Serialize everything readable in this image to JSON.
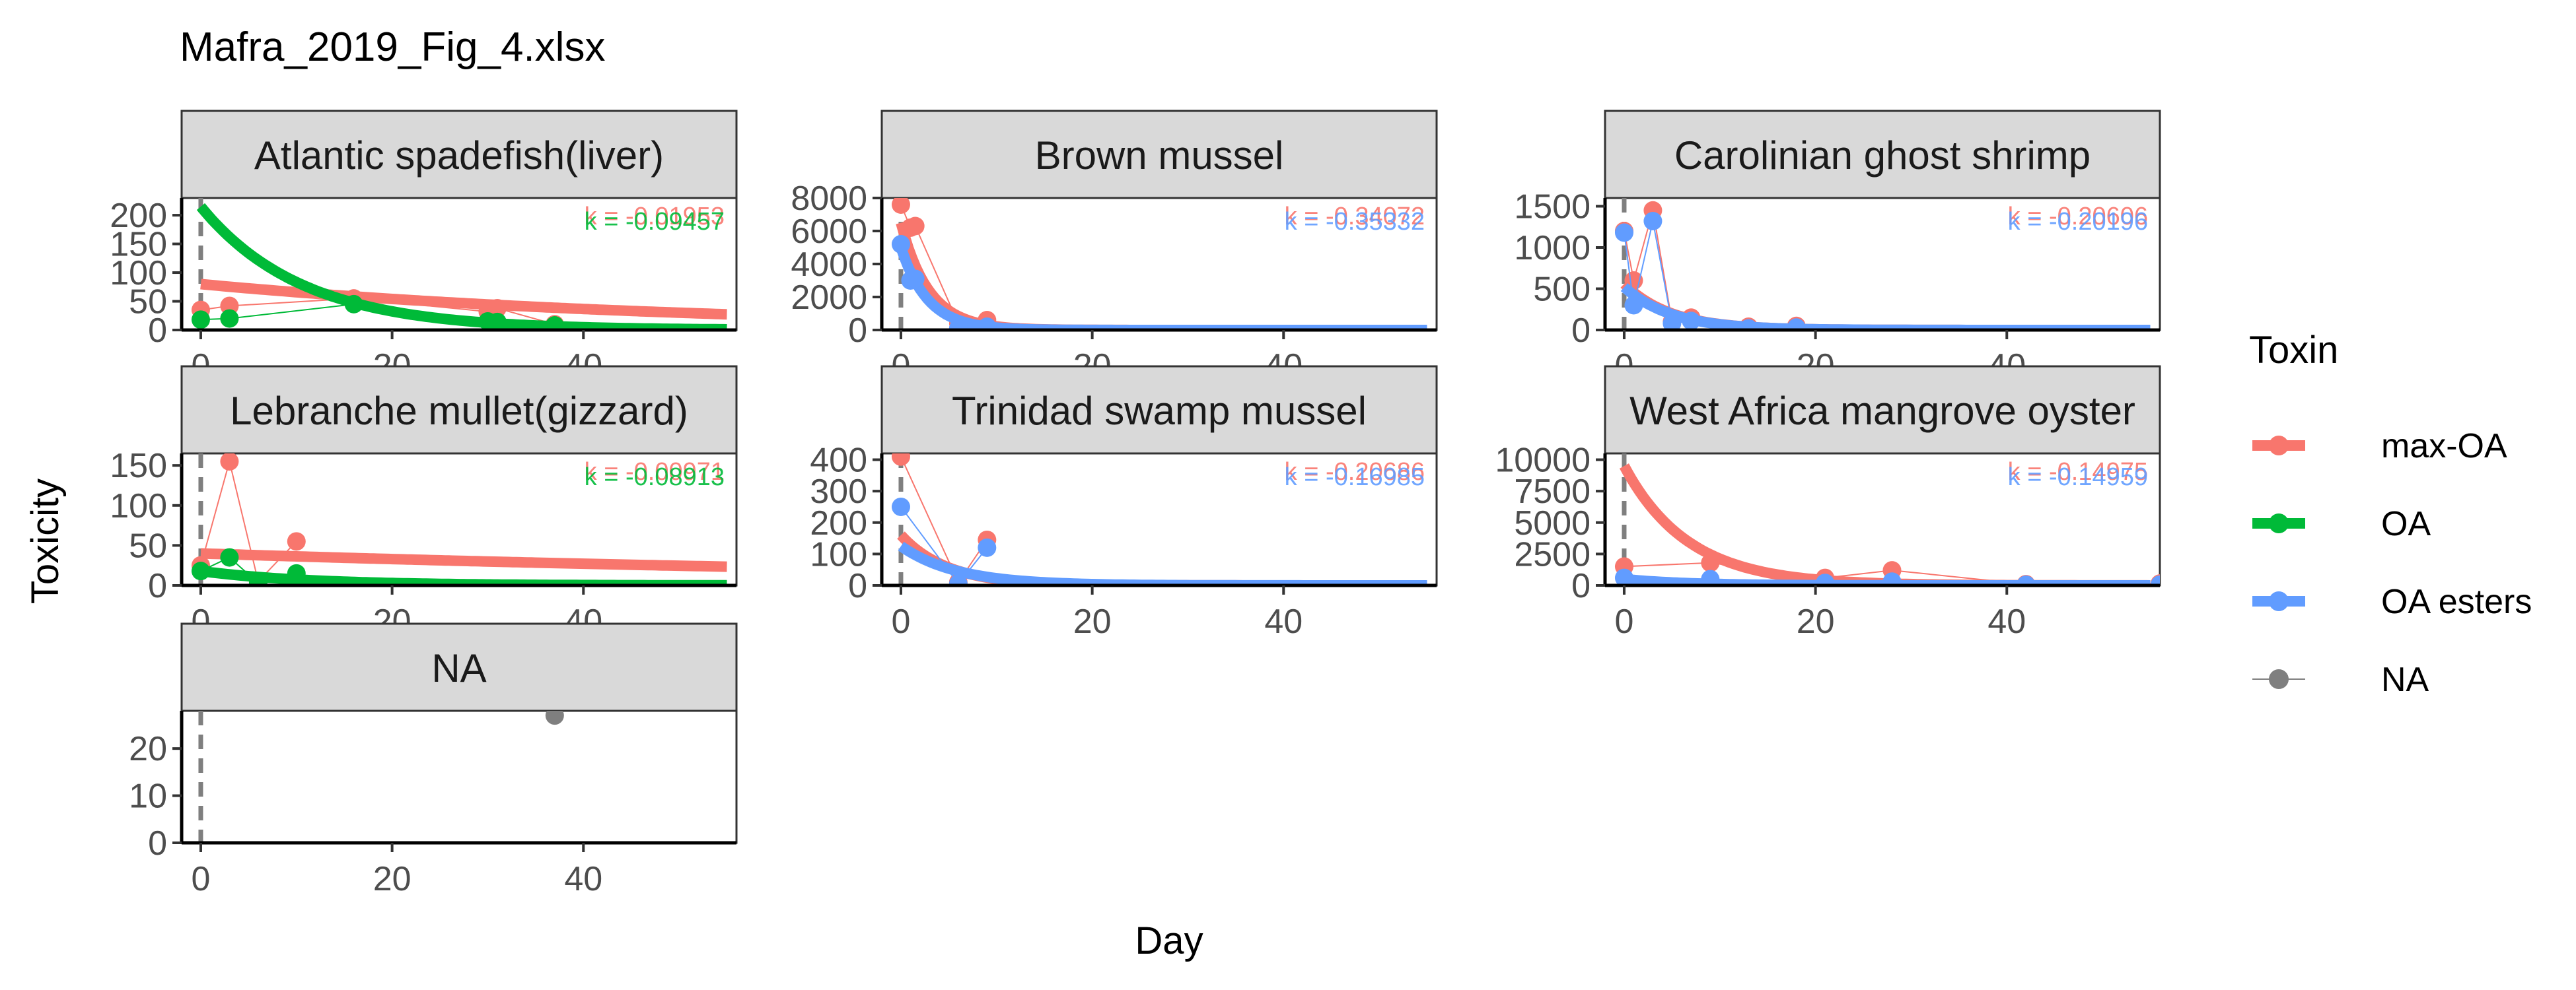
{
  "chart_data": {
    "type": "line",
    "title": "Mafra_2019_Fig_4.xlsx",
    "xlabel": "Day",
    "ylabel": "Toxicity",
    "legend": {
      "title": "Toxin",
      "placement": "right",
      "entries": [
        {
          "name": "max-OA",
          "color": "#F8766D"
        },
        {
          "name": "OA",
          "color": "#00BA38"
        },
        {
          "name": "OA esters",
          "color": "#619CFF"
        },
        {
          "name": "NA",
          "color": "#7F7F7F"
        }
      ]
    },
    "x_range": [
      -2,
      56
    ],
    "x_ticks": [
      0,
      20,
      40
    ],
    "facets": [
      {
        "title": "Atlantic spadefish(liver)",
        "y_range": [
          0,
          230
        ],
        "y_ticks": [
          0,
          50,
          100,
          150,
          200
        ],
        "y_tick_labels": [
          "0",
          "50",
          "100",
          "150",
          "200"
        ],
        "series": [
          {
            "toxin": "max-OA",
            "points": [
              [
                0,
                35
              ],
              [
                3,
                42
              ],
              [
                16,
                55
              ],
              [
                30,
                32
              ],
              [
                31,
                38
              ],
              [
                37,
                10
              ]
            ],
            "fit": {
              "a": 80,
              "k": 0.01953
            }
          },
          {
            "toxin": "OA",
            "points": [
              [
                0,
                18
              ],
              [
                3,
                20
              ],
              [
                16,
                45
              ],
              [
                30,
                15
              ],
              [
                31,
                14
              ],
              [
                37,
                8
              ]
            ],
            "fit": {
              "a": 215,
              "k": 0.09457
            }
          }
        ],
        "k_labels": [
          {
            "text": "k = -0.01953",
            "color": "#F8766D"
          },
          {
            "text": "k = -0.09457",
            "color": "#00BA38"
          }
        ]
      },
      {
        "title": "Brown mussel",
        "y_range": [
          0,
          8000
        ],
        "y_ticks": [
          0,
          2000,
          4000,
          6000,
          8000
        ],
        "y_tick_labels": [
          "0",
          "2000",
          "4000",
          "6000",
          "8000"
        ],
        "series": [
          {
            "toxin": "max-OA",
            "points": [
              [
                0,
                7600
              ],
              [
                1,
                6200
              ],
              [
                1.5,
                6300
              ],
              [
                6,
                400
              ],
              [
                9,
                600
              ]
            ],
            "fit": {
              "a": 6500,
              "k": 0.34072
            }
          },
          {
            "toxin": "OA esters",
            "points": [
              [
                0,
                5200
              ],
              [
                1,
                3000
              ],
              [
                1.5,
                3100
              ],
              [
                6,
                100
              ],
              [
                9,
                200
              ]
            ],
            "fit": {
              "a": 5000,
              "k": 0.35332
            }
          }
        ],
        "k_labels": [
          {
            "text": "k = -0.34072",
            "color": "#F8766D"
          },
          {
            "text": "k = -0.35332",
            "color": "#619CFF"
          }
        ]
      },
      {
        "title": "Carolinian ghost shrimp",
        "y_range": [
          0,
          1600
        ],
        "y_ticks": [
          0,
          500,
          1000,
          1500
        ],
        "y_tick_labels": [
          "0",
          "500",
          "1000",
          "1500"
        ],
        "series": [
          {
            "toxin": "max-OA",
            "points": [
              [
                0,
                1200
              ],
              [
                1,
                600
              ],
              [
                3,
                1450
              ],
              [
                5,
                100
              ],
              [
                7,
                150
              ],
              [
                13,
                40
              ],
              [
                18,
                50
              ]
            ],
            "fit": {
              "a": 560,
              "k": 0.20606
            }
          },
          {
            "toxin": "OA esters",
            "points": [
              [
                0,
                1180
              ],
              [
                1,
                300
              ],
              [
                3,
                1320
              ],
              [
                5,
                80
              ],
              [
                7,
                110
              ],
              [
                13,
                20
              ],
              [
                18,
                30
              ]
            ],
            "fit": {
              "a": 520,
              "k": 0.20196
            }
          }
        ],
        "k_labels": [
          {
            "text": "k = -0.20606",
            "color": "#F8766D"
          },
          {
            "text": "k = -0.20196",
            "color": "#619CFF"
          }
        ]
      },
      {
        "title": "Lebranche mullet(gizzard)",
        "y_range": [
          0,
          165
        ],
        "y_ticks": [
          0,
          50,
          100,
          150
        ],
        "y_tick_labels": [
          "0",
          "50",
          "100",
          "150"
        ],
        "series": [
          {
            "toxin": "max-OA",
            "points": [
              [
                0,
                25
              ],
              [
                3,
                155
              ],
              [
                6,
                5
              ],
              [
                10,
                55
              ]
            ],
            "fit": {
              "a": 40,
              "k": 0.00971
            }
          },
          {
            "toxin": "OA",
            "points": [
              [
                0,
                18
              ],
              [
                3,
                35
              ],
              [
                6,
                3
              ],
              [
                10,
                15
              ]
            ],
            "fit": {
              "a": 18,
              "k": 0.08913
            }
          }
        ],
        "k_labels": [
          {
            "text": "k = -0.00971",
            "color": "#F8766D"
          },
          {
            "text": "k = -0.08913",
            "color": "#00BA38"
          }
        ]
      },
      {
        "title": "Trinidad swamp mussel",
        "y_range": [
          0,
          420
        ],
        "y_ticks": [
          0,
          100,
          200,
          300,
          400
        ],
        "y_tick_labels": [
          "0",
          "100",
          "200",
          "300",
          "400"
        ],
        "series": [
          {
            "toxin": "max-OA",
            "points": [
              [
                0,
                410
              ],
              [
                6,
                10
              ],
              [
                9,
                145
              ]
            ],
            "fit": {
              "a": 160,
              "k": 0.20686
            }
          },
          {
            "toxin": "OA esters",
            "points": [
              [
                0,
                250
              ],
              [
                6,
                5
              ],
              [
                9,
                120
              ]
            ],
            "fit": {
              "a": 125,
              "k": 0.16985
            }
          }
        ],
        "k_labels": [
          {
            "text": "k = -0.20686",
            "color": "#F8766D"
          },
          {
            "text": "k = -0.16985",
            "color": "#619CFF"
          }
        ]
      },
      {
        "title": "West Africa mangrove oyster",
        "y_range": [
          0,
          10500
        ],
        "y_ticks": [
          0,
          2500,
          5000,
          7500,
          10000
        ],
        "y_tick_labels": [
          "0",
          "2500",
          "5000",
          "7500",
          "10000"
        ],
        "series": [
          {
            "toxin": "max-OA",
            "points": [
              [
                0,
                1500
              ],
              [
                9,
                1800
              ],
              [
                21,
                600
              ],
              [
                28,
                1200
              ],
              [
                42,
                100
              ],
              [
                56,
                150
              ]
            ],
            "fit": {
              "a": 9500,
              "k": 0.14975
            }
          },
          {
            "toxin": "OA esters",
            "points": [
              [
                0,
                600
              ],
              [
                9,
                500
              ],
              [
                21,
                200
              ],
              [
                28,
                300
              ],
              [
                42,
                50
              ],
              [
                56,
                60
              ]
            ],
            "fit": {
              "a": 500,
              "k": 0.14959
            }
          }
        ],
        "k_labels": [
          {
            "text": "k = -0.14975",
            "color": "#F8766D"
          },
          {
            "text": "k = -0.14959",
            "color": "#619CFF"
          }
        ]
      },
      {
        "title": "NA",
        "y_range": [
          0,
          28
        ],
        "y_ticks": [
          0,
          10,
          20
        ],
        "y_tick_labels": [
          "0",
          "10",
          "20"
        ],
        "series": [
          {
            "toxin": "NA",
            "points": [
              [
                37,
                27
              ]
            ]
          }
        ],
        "k_labels": []
      }
    ]
  }
}
